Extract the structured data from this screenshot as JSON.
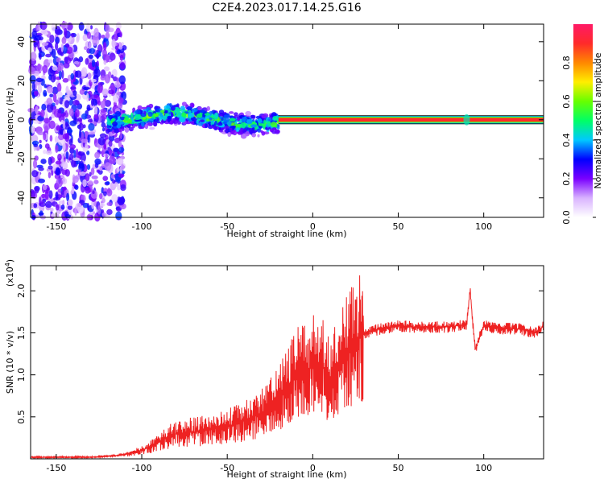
{
  "title": "C2E4.2023.017.14.25.G16",
  "chart_data": [
    {
      "type": "heatmap",
      "xlabel": "Height of straight line (km)",
      "ylabel": "Frequency (Hz)",
      "xlim": [
        -165,
        135
      ],
      "ylim": [
        -50,
        49
      ],
      "xticks": [
        -150,
        -100,
        -50,
        0,
        50,
        100
      ],
      "yticks": [
        -40,
        -20,
        0,
        20,
        40
      ],
      "colorbar": {
        "label": "Normalized spectral amplitude",
        "range": [
          0,
          1
        ],
        "ticks": [
          0.0,
          0.2,
          0.4,
          0.6,
          0.8
        ],
        "colormap": [
          "#ffffff",
          "#d9b3ff",
          "#7a00ff",
          "#0000ff",
          "#00c8ff",
          "#00ff66",
          "#66ff00",
          "#ffee00",
          "#ff8800",
          "#ff2a2a",
          "#ff1a66"
        ]
      },
      "features": [
        {
          "name": "noise",
          "x_range": [
            -165,
            -110
          ],
          "y_range": [
            -50,
            49
          ],
          "amplitude": 0.2
        },
        {
          "name": "broadband band",
          "x_range": [
            -120,
            -20
          ],
          "center_hz": [
            -2,
            0,
            2,
            4,
            2,
            0,
            -2,
            -3,
            -1
          ],
          "width_hz": 7,
          "amplitude": 0.45
        },
        {
          "name": "narrowband line",
          "x_range": [
            -20,
            135
          ],
          "center_hz": 0,
          "width_hz": 2,
          "amplitude": 0.95
        }
      ]
    },
    {
      "type": "line",
      "xlabel": "Height of straight line (km)",
      "ylabel": "SNR (10 * v/v)",
      "ylabel_multiplier": "(x10",
      "ylabel_exponent": "4",
      "ylabel_multiplier_close": ")",
      "xlim": [
        -165,
        135
      ],
      "ylim": [
        0,
        2.3
      ],
      "xticks": [
        -150,
        -100,
        -50,
        0,
        50,
        100
      ],
      "yticks": [
        0.5,
        1.0,
        1.5,
        2.0
      ],
      "ytick_labels": [
        "0.5",
        "1.0",
        "1.5",
        "2.0"
      ],
      "color": "#ee2222",
      "series": [
        {
          "x": [
            -165,
            -150,
            -140,
            -130,
            -120,
            -110,
            -100,
            -90,
            -80,
            -70,
            -60,
            -50,
            -40,
            -30,
            -20,
            -15,
            -10,
            -5,
            0,
            5,
            10,
            15,
            20,
            25,
            30,
            40,
            50,
            60,
            70,
            80,
            90,
            92,
            95,
            100,
            110,
            120,
            130,
            135
          ],
          "y": [
            0.02,
            0.02,
            0.02,
            0.02,
            0.03,
            0.05,
            0.1,
            0.2,
            0.3,
            0.32,
            0.35,
            0.38,
            0.45,
            0.55,
            0.7,
            0.85,
            1.0,
            1.05,
            1.1,
            1.15,
            0.9,
            1.1,
            1.3,
            1.4,
            1.5,
            1.55,
            1.58,
            1.57,
            1.57,
            1.57,
            1.6,
            2.0,
            1.3,
            1.58,
            1.55,
            1.55,
            1.5,
            1.58
          ]
        }
      ]
    }
  ]
}
